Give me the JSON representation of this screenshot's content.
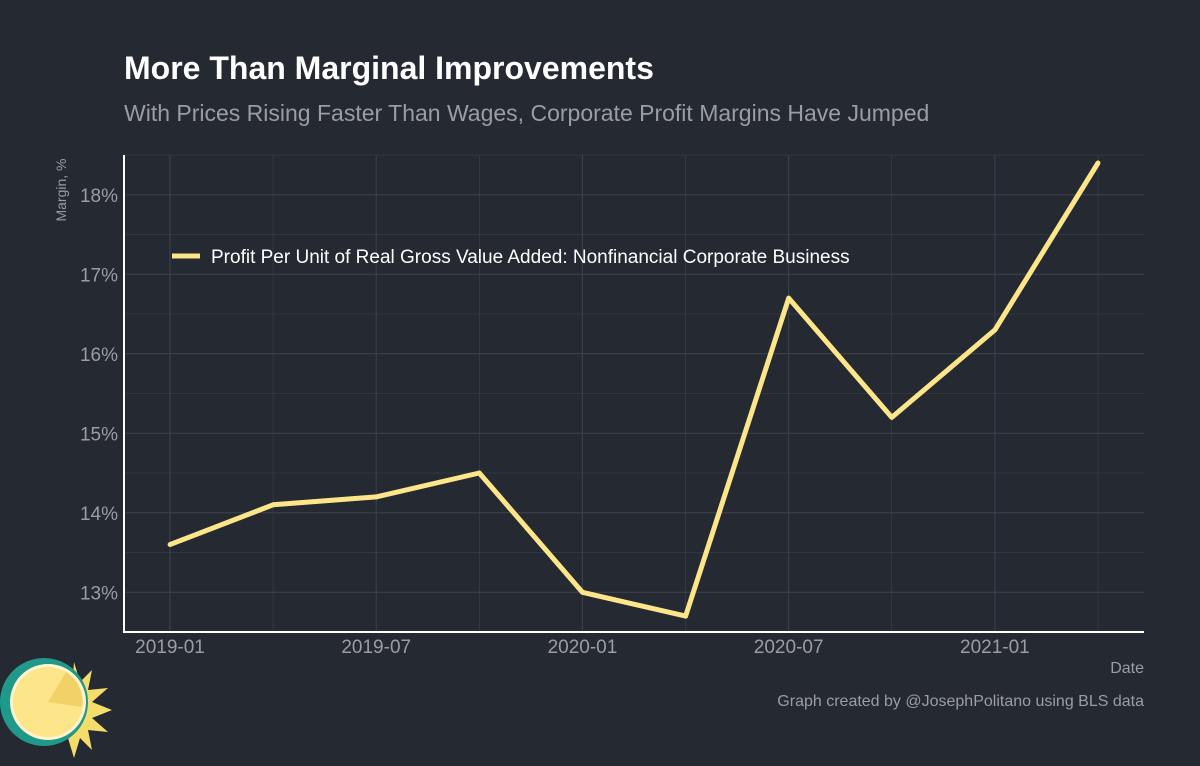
{
  "title": "More Than Marginal Improvements",
  "subtitle": "With Prices Rising Faster Than Wages, Corporate Profit Margins Have Jumped",
  "caption": "Graph created by @JosephPolitano using BLS data",
  "colors": {
    "background": "#252932",
    "series": "#fde68a",
    "grid": "#3e424b",
    "axis": "#ffffff",
    "tick_text": "#9a9da3"
  },
  "chart_data": {
    "type": "line",
    "xlabel": "Date",
    "ylabel": "Margin, %",
    "x": [
      "2019-01",
      "2019-04",
      "2019-07",
      "2019-10",
      "2020-01",
      "2020-04",
      "2020-07",
      "2020-10",
      "2021-01",
      "2021-04"
    ],
    "series": [
      {
        "name": "Profit Per Unit of Real Gross Value Added: Nonfinancial Corporate Business",
        "values": [
          13.6,
          14.1,
          14.2,
          14.5,
          13.0,
          12.7,
          16.7,
          15.2,
          16.3,
          18.4
        ]
      }
    ],
    "x_tick_labels": [
      "2019-01",
      "2019-07",
      "2020-01",
      "2020-07",
      "2021-01"
    ],
    "y_ticks": [
      13,
      14,
      15,
      16,
      17,
      18
    ],
    "y_tick_labels": [
      "13%",
      "14%",
      "15%",
      "16%",
      "17%",
      "18%"
    ],
    "ylim": [
      12.5,
      18.5
    ],
    "grid": true,
    "legend_position": "top-left"
  }
}
